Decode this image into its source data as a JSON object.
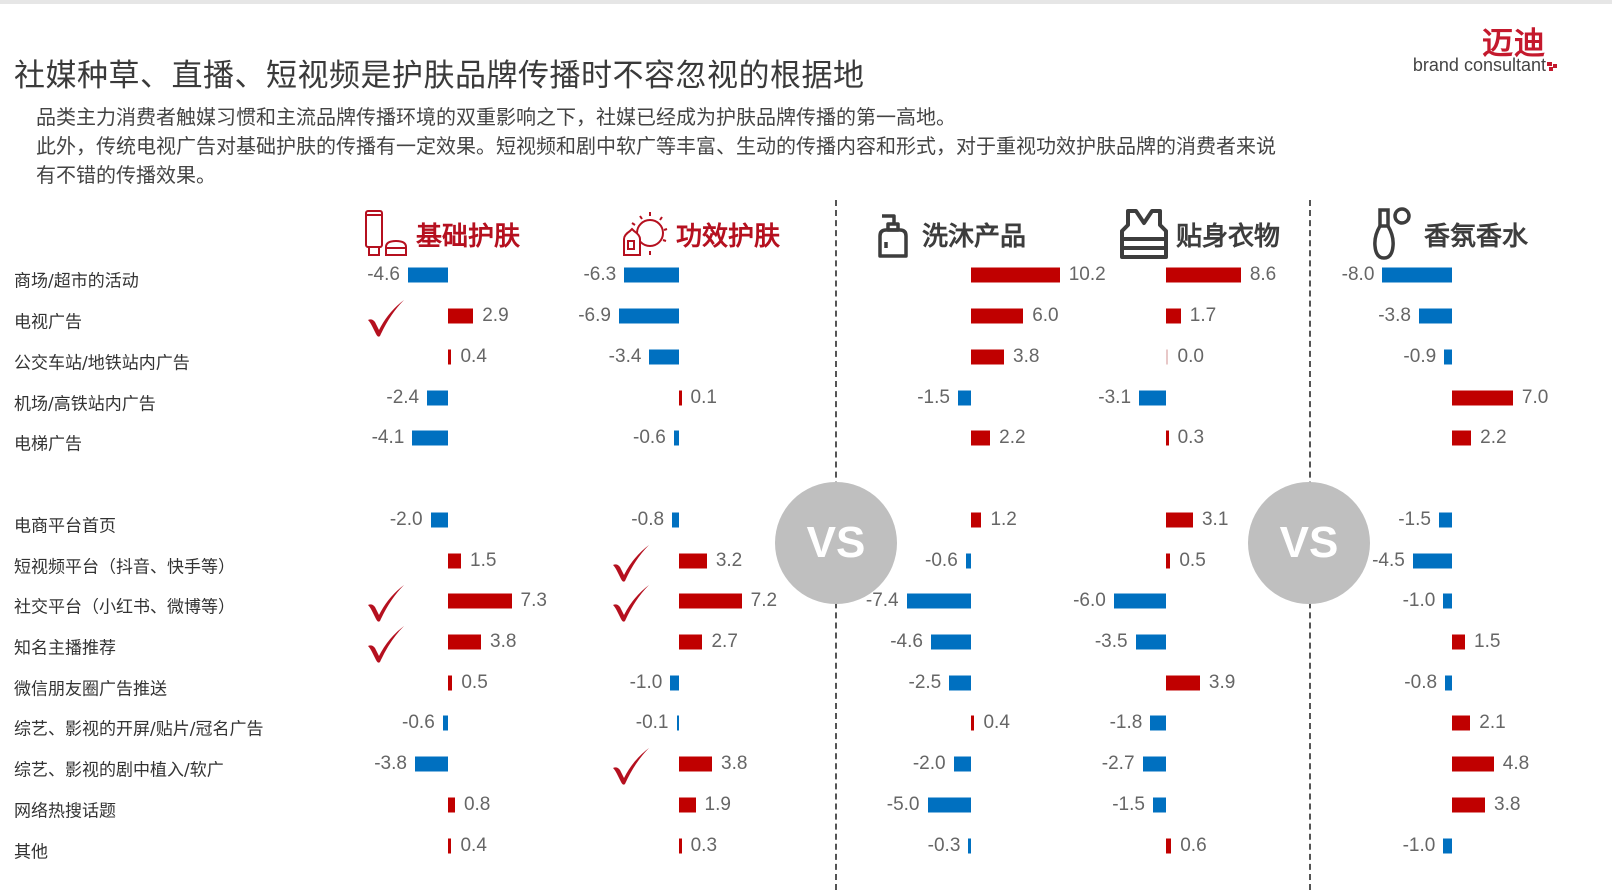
{
  "header": {
    "title": "社媒种草、直播、短视频是护肤品牌传播时不容忽视的根据地",
    "logo_cn": "迈迪",
    "logo_en": "brand consultant",
    "subtitle_lines": [
      "品类主力消费者触媒习惯和主流品牌传播环境的双重影响之下，社媒已经成为护肤品牌传播的第一高地。",
      "此外，传统电视广告对基础护肤的传播有一定效果。短视频和剧中软广等丰富、生动的传播内容和形式，对于重视功效护肤品牌的消费者来说",
      "有不错的传播效果。"
    ]
  },
  "colors": {
    "positive": "#c00000",
    "negative": "#0070c0",
    "accent_red": "#b5101f",
    "vs_circle": "#bfbfbf"
  },
  "vs_label": "VS",
  "columns": [
    {
      "name": "基础护肤",
      "icon": "skincare-tube-jar-icon",
      "style": "red"
    },
    {
      "name": "功效护肤",
      "icon": "serum-sun-icon",
      "style": "red"
    },
    {
      "name": "洗沐产品",
      "icon": "pump-bottle-icon",
      "style": "gray"
    },
    {
      "name": "贴身衣物",
      "icon": "vest-icon",
      "style": "gray"
    },
    {
      "name": "香氛香水",
      "icon": "perfume-bottle-icon",
      "style": "gray"
    }
  ],
  "rows": [
    "商场/超市的活动",
    "电视广告",
    "公交车站/地铁站内广告",
    "机场/高铁站内广告",
    "电梯广告",
    "电商平台首页",
    "短视频平台（抖音、快手等）",
    "社交平台（小红书、微博等）",
    "知名主播推荐",
    "微信朋友圈广告推送",
    "综艺、影视的开屏/贴片/冠名广告",
    "综艺、影视的剧中植入/软广",
    "网络热搜话题",
    "其他"
  ],
  "chart_data": {
    "type": "bar",
    "orientation": "horizontal-diverging",
    "title": "社媒种草、直播、短视频是护肤品牌传播时不容忽视的根据地",
    "categories": [
      "商场/超市的活动",
      "电视广告",
      "公交车站/地铁站内广告",
      "机场/高铁站内广告",
      "电梯广告",
      "电商平台首页",
      "短视频平台（抖音、快手等）",
      "社交平台（小红书、微博等）",
      "知名主播推荐",
      "微信朋友圈广告推送",
      "综艺、影视的开屏/贴片/冠名广告",
      "综艺、影视的剧中植入/软广",
      "网络热搜话题",
      "其他"
    ],
    "series": [
      {
        "name": "基础护肤",
        "values": [
          -4.6,
          2.9,
          0.4,
          -2.4,
          -4.1,
          -2.0,
          1.5,
          7.3,
          3.8,
          0.5,
          -0.6,
          -3.8,
          0.8,
          0.4
        ],
        "checked": [
          false,
          true,
          false,
          false,
          false,
          false,
          false,
          true,
          true,
          false,
          false,
          false,
          false,
          false
        ]
      },
      {
        "name": "功效护肤",
        "values": [
          -6.3,
          -6.9,
          -3.4,
          0.1,
          -0.6,
          -0.8,
          3.2,
          7.2,
          2.7,
          -1.0,
          -0.1,
          3.8,
          1.9,
          0.3
        ],
        "checked": [
          false,
          false,
          false,
          false,
          false,
          false,
          true,
          true,
          false,
          false,
          false,
          true,
          false,
          false
        ]
      },
      {
        "name": "洗沐产品",
        "values": [
          10.2,
          6.0,
          3.8,
          -1.5,
          2.2,
          1.2,
          -0.6,
          -7.4,
          -4.6,
          -2.5,
          0.4,
          -2.0,
          -5.0,
          -0.3
        ],
        "checked": [
          false,
          false,
          false,
          false,
          false,
          false,
          false,
          false,
          false,
          false,
          false,
          false,
          false,
          false
        ]
      },
      {
        "name": "贴身衣物",
        "values": [
          8.6,
          1.7,
          0.0,
          -3.1,
          0.3,
          3.1,
          0.5,
          -6.0,
          -3.5,
          3.9,
          -1.8,
          -2.7,
          -1.5,
          0.6
        ],
        "checked": [
          false,
          false,
          false,
          false,
          false,
          false,
          false,
          false,
          false,
          false,
          false,
          false,
          false,
          false
        ]
      },
      {
        "name": "香氛香水",
        "values": [
          -8.0,
          -3.8,
          -0.9,
          7.0,
          2.2,
          -1.5,
          -4.5,
          -1.0,
          1.5,
          -0.8,
          2.1,
          4.8,
          3.8,
          -1.0
        ],
        "checked": [
          false,
          false,
          false,
          false,
          false,
          false,
          false,
          false,
          false,
          false,
          false,
          false,
          false,
          false
        ]
      }
    ],
    "legend": "positive values red, negative values blue",
    "grid": false,
    "annotations": [
      "VS",
      "VS",
      "✓ check marks highlight key channels for 基础护肤 and 功效护肤"
    ]
  }
}
